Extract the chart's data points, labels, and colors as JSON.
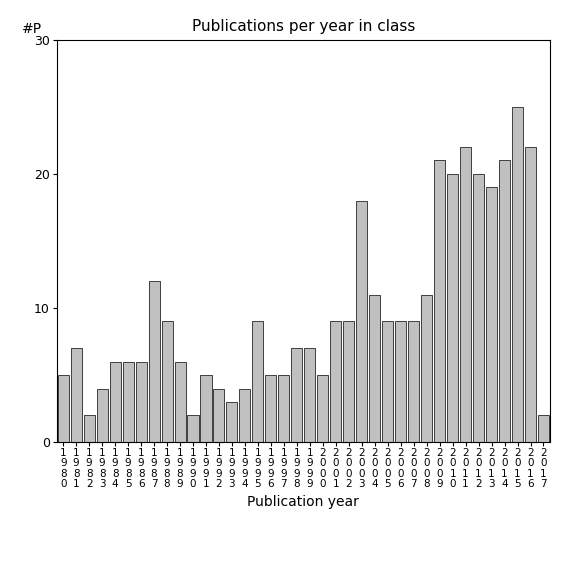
{
  "title": "Publications per year in class",
  "xlabel": "Publication year",
  "ylabel": "#P",
  "years": [
    "1980",
    "1981",
    "1982",
    "1983",
    "1984",
    "1985",
    "1986",
    "1987",
    "1988",
    "1989",
    "1990",
    "1991",
    "1992",
    "1993",
    "1994",
    "1995",
    "1996",
    "1997",
    "1998",
    "1999",
    "2000",
    "2001",
    "2002",
    "2003",
    "2004",
    "2005",
    "2006",
    "2007",
    "2008",
    "2009",
    "2010",
    "2011",
    "2012",
    "2013",
    "2014",
    "2015",
    "2016",
    "2017"
  ],
  "values": [
    5,
    7,
    2,
    4,
    6,
    6,
    6,
    12,
    9,
    6,
    2,
    5,
    4,
    3,
    4,
    9,
    5,
    5,
    7,
    7,
    5,
    9,
    9,
    18,
    11,
    9,
    9,
    9,
    11,
    21,
    20,
    22,
    20,
    19,
    21,
    25,
    22,
    2
  ],
  "bar_color": "#c0c0c0",
  "bar_edgecolor": "#000000",
  "ylim": [
    0,
    30
  ],
  "yticks": [
    0,
    10,
    20,
    30
  ],
  "background_color": "#ffffff",
  "title_fontsize": 11,
  "axis_fontsize": 10,
  "tick_fontsize": 9
}
